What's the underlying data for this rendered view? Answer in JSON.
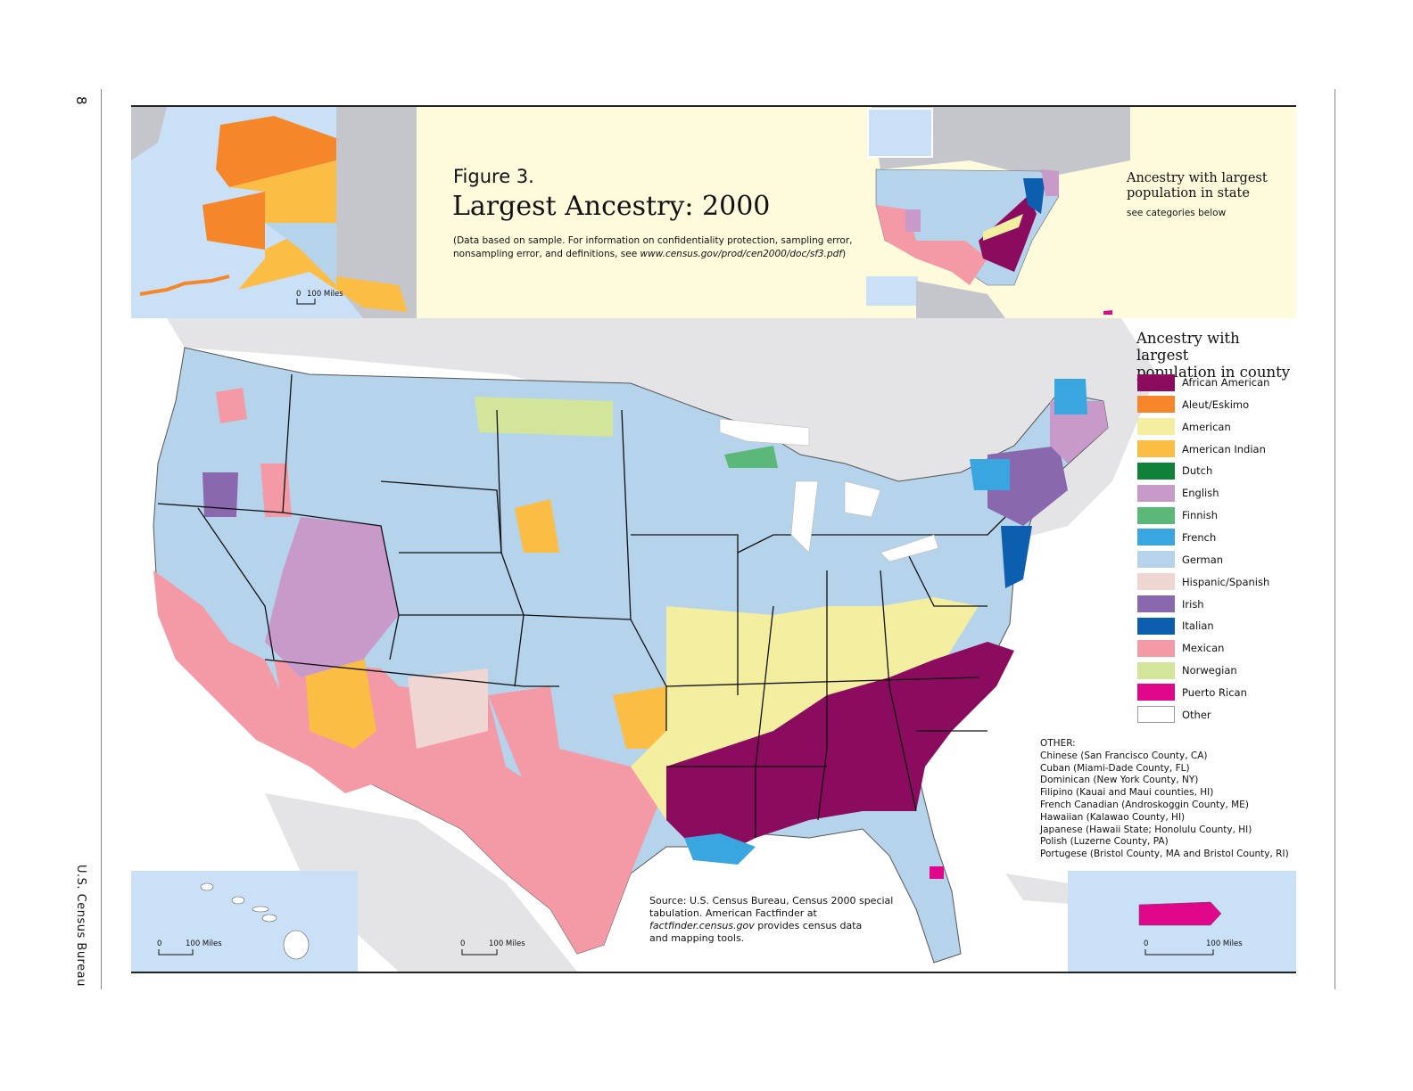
{
  "page": {
    "number": "8",
    "side_label": "U.S. Census Bureau"
  },
  "figure": {
    "label": "Figure 3.",
    "title": "Largest Ancestry: 2000",
    "note_line1": "(Data based on sample. For information on confidentiality protection, sampling error,",
    "note_line2_prefix": "nonsampling error, and definitions, see ",
    "note_url": "www.census.gov/prod/cen2000/doc/sf3.pdf",
    "note_suffix": ")"
  },
  "state_map": {
    "title_line1": "Ancestry with largest",
    "title_line2": "population in state",
    "subtitle": "see categories below"
  },
  "county_legend": {
    "title_line1": "Ancestry with largest",
    "title_line2": "population in county",
    "items": [
      {
        "label": "African American",
        "color": "#8b0b5e"
      },
      {
        "label": "Aleut/Eskimo",
        "color": "#f5862a"
      },
      {
        "label": "American",
        "color": "#f3eea0"
      },
      {
        "label": "American Indian",
        "color": "#fbbd43"
      },
      {
        "label": "Dutch",
        "color": "#0f8138"
      },
      {
        "label": "English",
        "color": "#c89ac9"
      },
      {
        "label": "Finnish",
        "color": "#5bb878"
      },
      {
        "label": "French",
        "color": "#3aa6e0"
      },
      {
        "label": "German",
        "color": "#b5d3ea"
      },
      {
        "label": "Hispanic/Spanish",
        "color": "#f0d6d2"
      },
      {
        "label": "Irish",
        "color": "#8a68ae"
      },
      {
        "label": "Italian",
        "color": "#0b5fae"
      },
      {
        "label": "Mexican",
        "color": "#f39aa6"
      },
      {
        "label": "Norwegian",
        "color": "#d3e59a"
      },
      {
        "label": "Puerto Rican",
        "color": "#e0078a"
      },
      {
        "label": "Other",
        "color": "#ffffff"
      }
    ]
  },
  "other": {
    "heading": "OTHER:",
    "items": [
      "Chinese (San Francisco County, CA)",
      "Cuban (Miami-Dade County, FL)",
      "Dominican (New York County, NY)",
      "Filipino (Kauai and Maui counties, HI)",
      "French Canadian (Androskoggin County, ME)",
      "Hawaiian (Kalawao County, HI)",
      "Japanese (Hawaii State; Honolulu County, HI)",
      "Polish (Luzerne County, PA)",
      "Portugese (Bristol County, MA and Bristol County, RI)"
    ]
  },
  "source": {
    "line1": "Source: U.S. Census Bureau, Census 2000 special",
    "line2": "tabulation. American Factfinder at",
    "line3_url": "factfinder.census.gov",
    "line3_rest": " provides census data",
    "line4": "and mapping tools."
  },
  "scales": {
    "alaska": {
      "zero": "0",
      "label": "100 Miles"
    },
    "hawaii": {
      "zero": "0",
      "label": "100 Miles"
    },
    "main": {
      "zero": "0",
      "label": "100 Miles"
    },
    "puerto_rico": {
      "zero": "0",
      "label": "100 Miles"
    }
  },
  "colors": {
    "water": "#c9e0f7",
    "cream": "#fdfbdc",
    "foreign_land": "#e4e4e6",
    "foreign_land_dark": "#c4c6cc"
  }
}
